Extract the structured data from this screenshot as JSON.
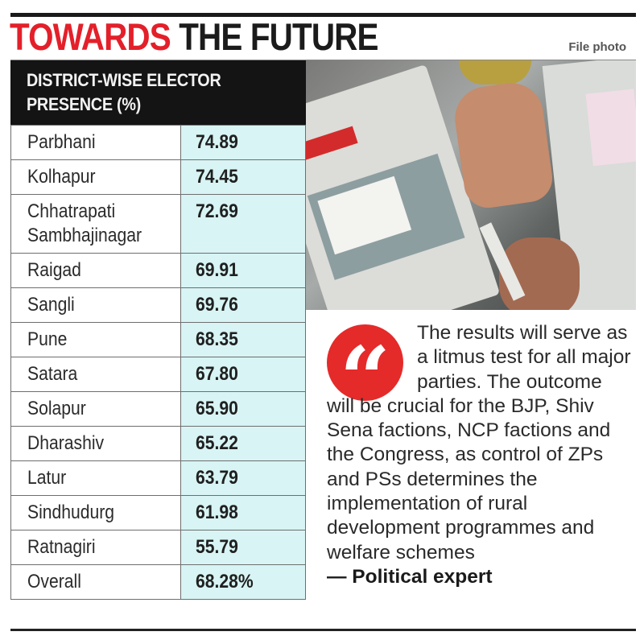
{
  "header": {
    "title_red": "TOWARDS",
    "title_black": "THE FUTURE",
    "photo_credit": "File photo"
  },
  "table": {
    "heading_line1": "DISTRICT-WISE ELECTOR",
    "heading_line2": "PRESENCE (%)",
    "rows": [
      {
        "district": "Parbhani",
        "value": "74.89"
      },
      {
        "district": "Kolhapur",
        "value": "74.45"
      },
      {
        "district": "Chhatrapati Sambhajinagar",
        "district_line1": "Chhatrapati",
        "district_line2": "Sambhajinagar",
        "value": "72.69"
      },
      {
        "district": "Raigad",
        "value": "69.91"
      },
      {
        "district": "Sangli",
        "value": "69.76"
      },
      {
        "district": "Pune",
        "value": "68.35"
      },
      {
        "district": "Satara",
        "value": "67.80"
      },
      {
        "district": "Solapur",
        "value": "65.90"
      },
      {
        "district": "Dharashiv",
        "value": "65.22"
      },
      {
        "district": "Latur",
        "value": "63.79"
      },
      {
        "district": "Sindhudurg",
        "value": "61.98"
      },
      {
        "district": "Ratnagiri",
        "value": "55.79"
      },
      {
        "district": "Overall",
        "value": "68.28%"
      }
    ]
  },
  "photo": {
    "description": "Voter hands near electronic voting machines with ink marker"
  },
  "quote": {
    "icon": "quote-mark-icon",
    "text": "The results will serve as a litmus test for all major parties. The outcome will be crucial for the BJP, Shiv Sena factions, NCP factions and the Congress, as control of ZPs and PSs determines the implementation of rural development programmes and welfare schemes",
    "attribution": "— Political expert"
  },
  "colors": {
    "accent_red": "#e3202a",
    "header_bg": "#141414",
    "value_cell_bg": "#d8f4f4",
    "quote_icon_bg": "#e52a2a"
  }
}
